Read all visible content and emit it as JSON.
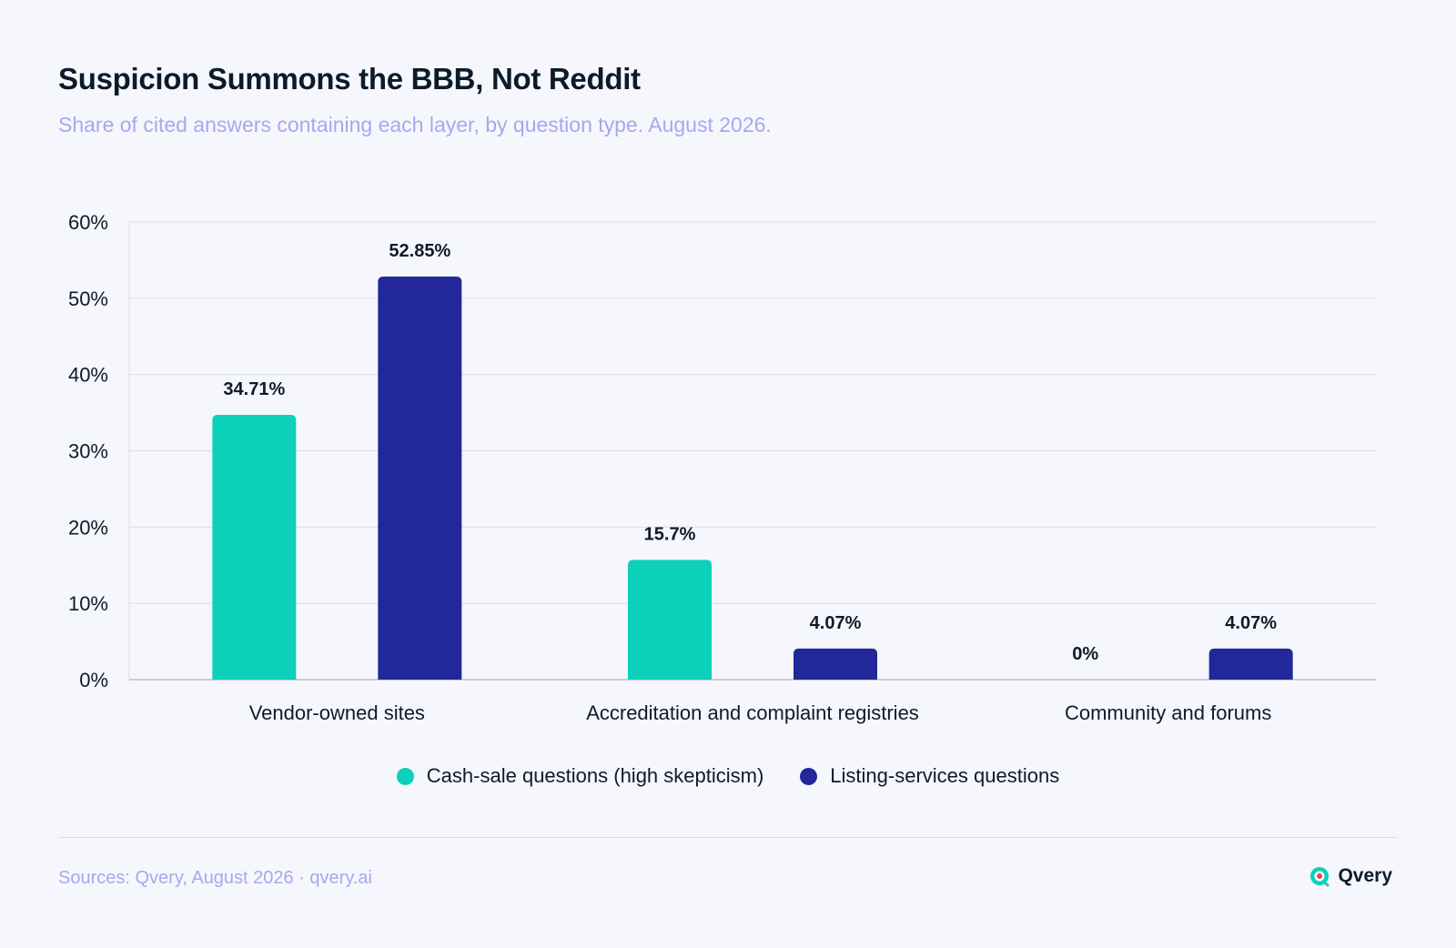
{
  "header": {
    "title": "Suspicion Summons the BBB, Not Reddit",
    "subtitle": "Share of cited answers containing each layer, by question type. August 2026."
  },
  "chart_data": {
    "type": "bar",
    "categories": [
      "Vendor-owned sites",
      "Accreditation and complaint registries",
      "Community and forums"
    ],
    "series": [
      {
        "name": "Cash-sale questions (high skepticism)",
        "color": "#0dd0bb",
        "values": [
          34.71,
          15.7,
          0
        ],
        "labels": [
          "34.71%",
          "15.7%",
          "0%"
        ]
      },
      {
        "name": "Listing-services questions",
        "color": "#22279a",
        "values": [
          52.85,
          4.07,
          4.07
        ],
        "labels": [
          "52.85%",
          "4.07%",
          "4.07%"
        ]
      }
    ],
    "y_ticks": [
      {
        "value": 0,
        "label": "0%"
      },
      {
        "value": 10,
        "label": "10%"
      },
      {
        "value": 20,
        "label": "20%"
      },
      {
        "value": 30,
        "label": "30%"
      },
      {
        "value": 40,
        "label": "40%"
      },
      {
        "value": 50,
        "label": "50%"
      },
      {
        "value": 60,
        "label": "60%"
      }
    ],
    "ylim": [
      0,
      60
    ],
    "grid": true,
    "legend_position": "bottom-center"
  },
  "footer": {
    "sources": "Sources: Qvery, August 2026 · qvery.ai",
    "brand_name": "Qvery",
    "brand_icon": "qvery-logo-icon"
  }
}
